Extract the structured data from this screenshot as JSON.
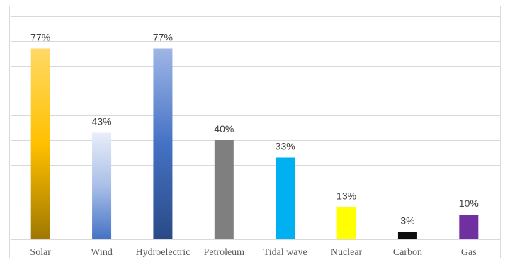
{
  "chart_data": {
    "type": "bar",
    "categories": [
      "Solar",
      "Wind",
      "Hydroelectric",
      "Petroleum",
      "Tidal wave",
      "Nuclear",
      "Carbon",
      "Gas"
    ],
    "values": [
      77,
      43,
      77,
      40,
      33,
      13,
      3,
      10
    ],
    "data_labels": [
      "77%",
      "43%",
      "77%",
      "40%",
      "33%",
      "13%",
      "3%",
      "10%"
    ],
    "ylim": [
      0,
      90
    ],
    "y_grid_step": 10,
    "grid": true,
    "legend": "none",
    "title": "",
    "xlabel": "",
    "ylabel": "",
    "bar_fills": [
      {
        "type": "gradient",
        "stops": [
          "#ffd966",
          "#ffc000",
          "#a07800"
        ]
      },
      {
        "type": "gradient",
        "stops": [
          "#e8eef9",
          "#a9bfe8",
          "#4472c4"
        ]
      },
      {
        "type": "gradient",
        "stops": [
          "#9fb6e6",
          "#4472c4",
          "#2a4a86"
        ]
      },
      {
        "type": "solid",
        "color": "#7f7f7f"
      },
      {
        "type": "solid",
        "color": "#00b0f0"
      },
      {
        "type": "solid",
        "color": "#ffff00"
      },
      {
        "type": "solid",
        "color": "#0d0d0d"
      },
      {
        "type": "solid",
        "color": "#7030a0"
      }
    ]
  }
}
